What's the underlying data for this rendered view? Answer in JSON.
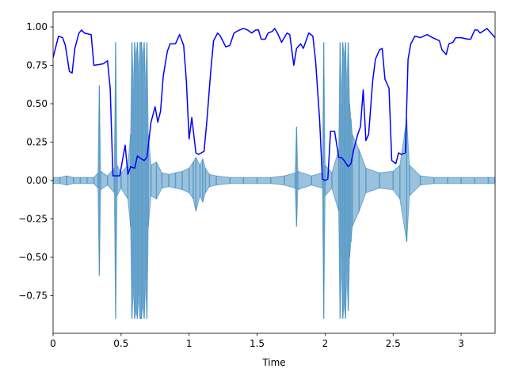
{
  "chart_data": {
    "type": "line",
    "xlabel": "Time",
    "xlim": [
      0,
      3.25
    ],
    "ylim": [
      -0.995,
      1.098
    ],
    "xticks": [
      0,
      0.5,
      1,
      1.5,
      2,
      2.5,
      3
    ],
    "yticks": [
      {
        "value": -0.75,
        "label": "−0.75"
      },
      {
        "value": -0.5,
        "label": "−0.50"
      },
      {
        "value": -0.25,
        "label": "−0.25"
      },
      {
        "value": 0,
        "label": "0.00"
      },
      {
        "value": 0.25,
        "label": "0.25"
      },
      {
        "value": 0.5,
        "label": "0.50"
      },
      {
        "value": 0.75,
        "label": "0.75"
      },
      {
        "value": 1.0,
        "label": "1.00"
      }
    ],
    "waveform": {
      "color": "#1f77b4",
      "x": [
        0,
        0.05,
        0.1,
        0.15,
        0.2,
        0.25,
        0.3,
        0.33,
        0.34,
        0.35,
        0.4,
        0.45,
        0.46,
        0.47,
        0.5,
        0.55,
        0.57,
        0.58,
        0.59,
        0.6,
        0.61,
        0.62,
        0.63,
        0.64,
        0.65,
        0.66,
        0.67,
        0.68,
        0.69,
        0.7,
        0.72,
        0.76,
        0.8,
        0.85,
        0.9,
        0.95,
        1.0,
        1.03,
        1.05,
        1.08,
        1.1,
        1.12,
        1.15,
        1.2,
        1.3,
        1.4,
        1.5,
        1.6,
        1.7,
        1.78,
        1.79,
        1.8,
        1.9,
        1.98,
        1.99,
        2.0,
        2.05,
        2.1,
        2.11,
        2.12,
        2.13,
        2.14,
        2.15,
        2.16,
        2.17,
        2.18,
        2.19,
        2.2,
        2.25,
        2.3,
        2.4,
        2.5,
        2.55,
        2.6,
        2.62,
        2.7,
        2.8,
        2.9,
        3.0,
        3.1,
        3.2,
        3.25
      ],
      "upper": [
        0.02,
        0.02,
        0.03,
        0.02,
        0.02,
        0.02,
        0.02,
        0.05,
        0.62,
        0.06,
        0.03,
        0.08,
        0.9,
        0.1,
        0.05,
        0.1,
        0.3,
        0.9,
        0.6,
        0.9,
        0.8,
        0.9,
        0.7,
        0.9,
        0.9,
        0.8,
        0.9,
        0.6,
        0.9,
        0.3,
        0.1,
        0.12,
        0.05,
        0.04,
        0.05,
        0.06,
        0.08,
        0.12,
        0.15,
        0.1,
        0.14,
        0.08,
        0.04,
        0.03,
        0.02,
        0.02,
        0.02,
        0.02,
        0.03,
        0.05,
        0.35,
        0.06,
        0.03,
        0.05,
        0.9,
        0.1,
        0.05,
        0.2,
        0.9,
        0.5,
        0.9,
        0.8,
        0.9,
        0.6,
        0.9,
        0.5,
        0.4,
        0.3,
        0.2,
        0.08,
        0.05,
        0.06,
        0.1,
        0.4,
        0.1,
        0.03,
        0.02,
        0.02,
        0.02,
        0.02,
        0.02,
        0.02
      ],
      "lower": [
        -0.02,
        -0.02,
        -0.03,
        -0.02,
        -0.02,
        -0.02,
        -0.02,
        -0.05,
        -0.62,
        -0.06,
        -0.03,
        -0.08,
        -0.9,
        -0.1,
        -0.05,
        -0.12,
        -0.3,
        -0.9,
        -0.7,
        -0.9,
        -0.85,
        -0.9,
        -0.75,
        -0.9,
        -0.9,
        -0.8,
        -0.9,
        -0.65,
        -0.9,
        -0.3,
        -0.1,
        -0.12,
        -0.05,
        -0.04,
        -0.05,
        -0.06,
        -0.08,
        -0.12,
        -0.2,
        -0.1,
        -0.14,
        -0.08,
        -0.04,
        -0.03,
        -0.02,
        -0.02,
        -0.02,
        -0.02,
        -0.03,
        -0.05,
        -0.3,
        -0.06,
        -0.03,
        -0.05,
        -0.9,
        -0.1,
        -0.05,
        -0.2,
        -0.9,
        -0.5,
        -0.9,
        -0.8,
        -0.9,
        -0.6,
        -0.85,
        -0.5,
        -0.4,
        -0.3,
        -0.2,
        -0.08,
        -0.05,
        -0.06,
        -0.12,
        -0.4,
        -0.1,
        -0.03,
        -0.02,
        -0.02,
        -0.02,
        -0.02,
        -0.02,
        -0.02
      ]
    },
    "series": [
      {
        "color": "#0000ff",
        "x": [
          0,
          0.04,
          0.07,
          0.09,
          0.12,
          0.14,
          0.16,
          0.19,
          0.21,
          0.23,
          0.28,
          0.3,
          0.37,
          0.4,
          0.42,
          0.44,
          0.49,
          0.53,
          0.55,
          0.57,
          0.6,
          0.62,
          0.65,
          0.67,
          0.69,
          0.72,
          0.75,
          0.77,
          0.79,
          0.81,
          0.84,
          0.86,
          0.9,
          0.93,
          0.96,
          0.98,
          1.0,
          1.02,
          1.05,
          1.07,
          1.11,
          1.13,
          1.16,
          1.18,
          1.21,
          1.23,
          1.27,
          1.3,
          1.33,
          1.37,
          1.4,
          1.43,
          1.46,
          1.49,
          1.51,
          1.53,
          1.56,
          1.58,
          1.61,
          1.63,
          1.65,
          1.68,
          1.72,
          1.74,
          1.77,
          1.79,
          1.82,
          1.84,
          1.88,
          1.91,
          1.93,
          1.96,
          1.98,
          2.0,
          2.02,
          2.04,
          2.07,
          2.1,
          2.12,
          2.14,
          2.17,
          2.19,
          2.21,
          2.24,
          2.26,
          2.28,
          2.3,
          2.32,
          2.35,
          2.37,
          2.4,
          2.42,
          2.44,
          2.47,
          2.49,
          2.52,
          2.54,
          2.56,
          2.59,
          2.61,
          2.63,
          2.66,
          2.7,
          2.75,
          2.79,
          2.84,
          2.86,
          2.89,
          2.91,
          2.94,
          2.96,
          3.0,
          3.05,
          3.07,
          3.1,
          3.12,
          3.14,
          3.19,
          3.22,
          3.25
        ],
        "values": [
          0.8,
          0.94,
          0.93,
          0.88,
          0.71,
          0.7,
          0.86,
          0.96,
          0.98,
          0.96,
          0.95,
          0.75,
          0.76,
          0.78,
          0.6,
          0.03,
          0.03,
          0.23,
          0.04,
          0.09,
          0.08,
          0.16,
          0.14,
          0.13,
          0.15,
          0.38,
          0.48,
          0.38,
          0.45,
          0.68,
          0.84,
          0.89,
          0.89,
          0.95,
          0.88,
          0.65,
          0.27,
          0.41,
          0.18,
          0.17,
          0.19,
          0.38,
          0.72,
          0.91,
          0.96,
          0.94,
          0.87,
          0.88,
          0.96,
          0.98,
          0.99,
          0.98,
          0.96,
          0.98,
          0.98,
          0.92,
          0.92,
          0.96,
          0.97,
          0.99,
          0.96,
          0.9,
          0.96,
          0.95,
          0.75,
          0.86,
          0.89,
          0.86,
          0.96,
          0.94,
          0.78,
          0.39,
          0.01,
          0.0,
          0.01,
          0.32,
          0.32,
          0.15,
          0.15,
          0.13,
          0.09,
          0.11,
          0.2,
          0.3,
          0.35,
          0.59,
          0.26,
          0.3,
          0.65,
          0.79,
          0.85,
          0.86,
          0.66,
          0.6,
          0.13,
          0.11,
          0.18,
          0.17,
          0.18,
          0.79,
          0.89,
          0.94,
          0.93,
          0.95,
          0.93,
          0.91,
          0.85,
          0.82,
          0.89,
          0.9,
          0.93,
          0.93,
          0.92,
          0.92,
          0.98,
          0.98,
          0.96,
          0.99,
          0.96,
          0.93
        ]
      }
    ]
  }
}
